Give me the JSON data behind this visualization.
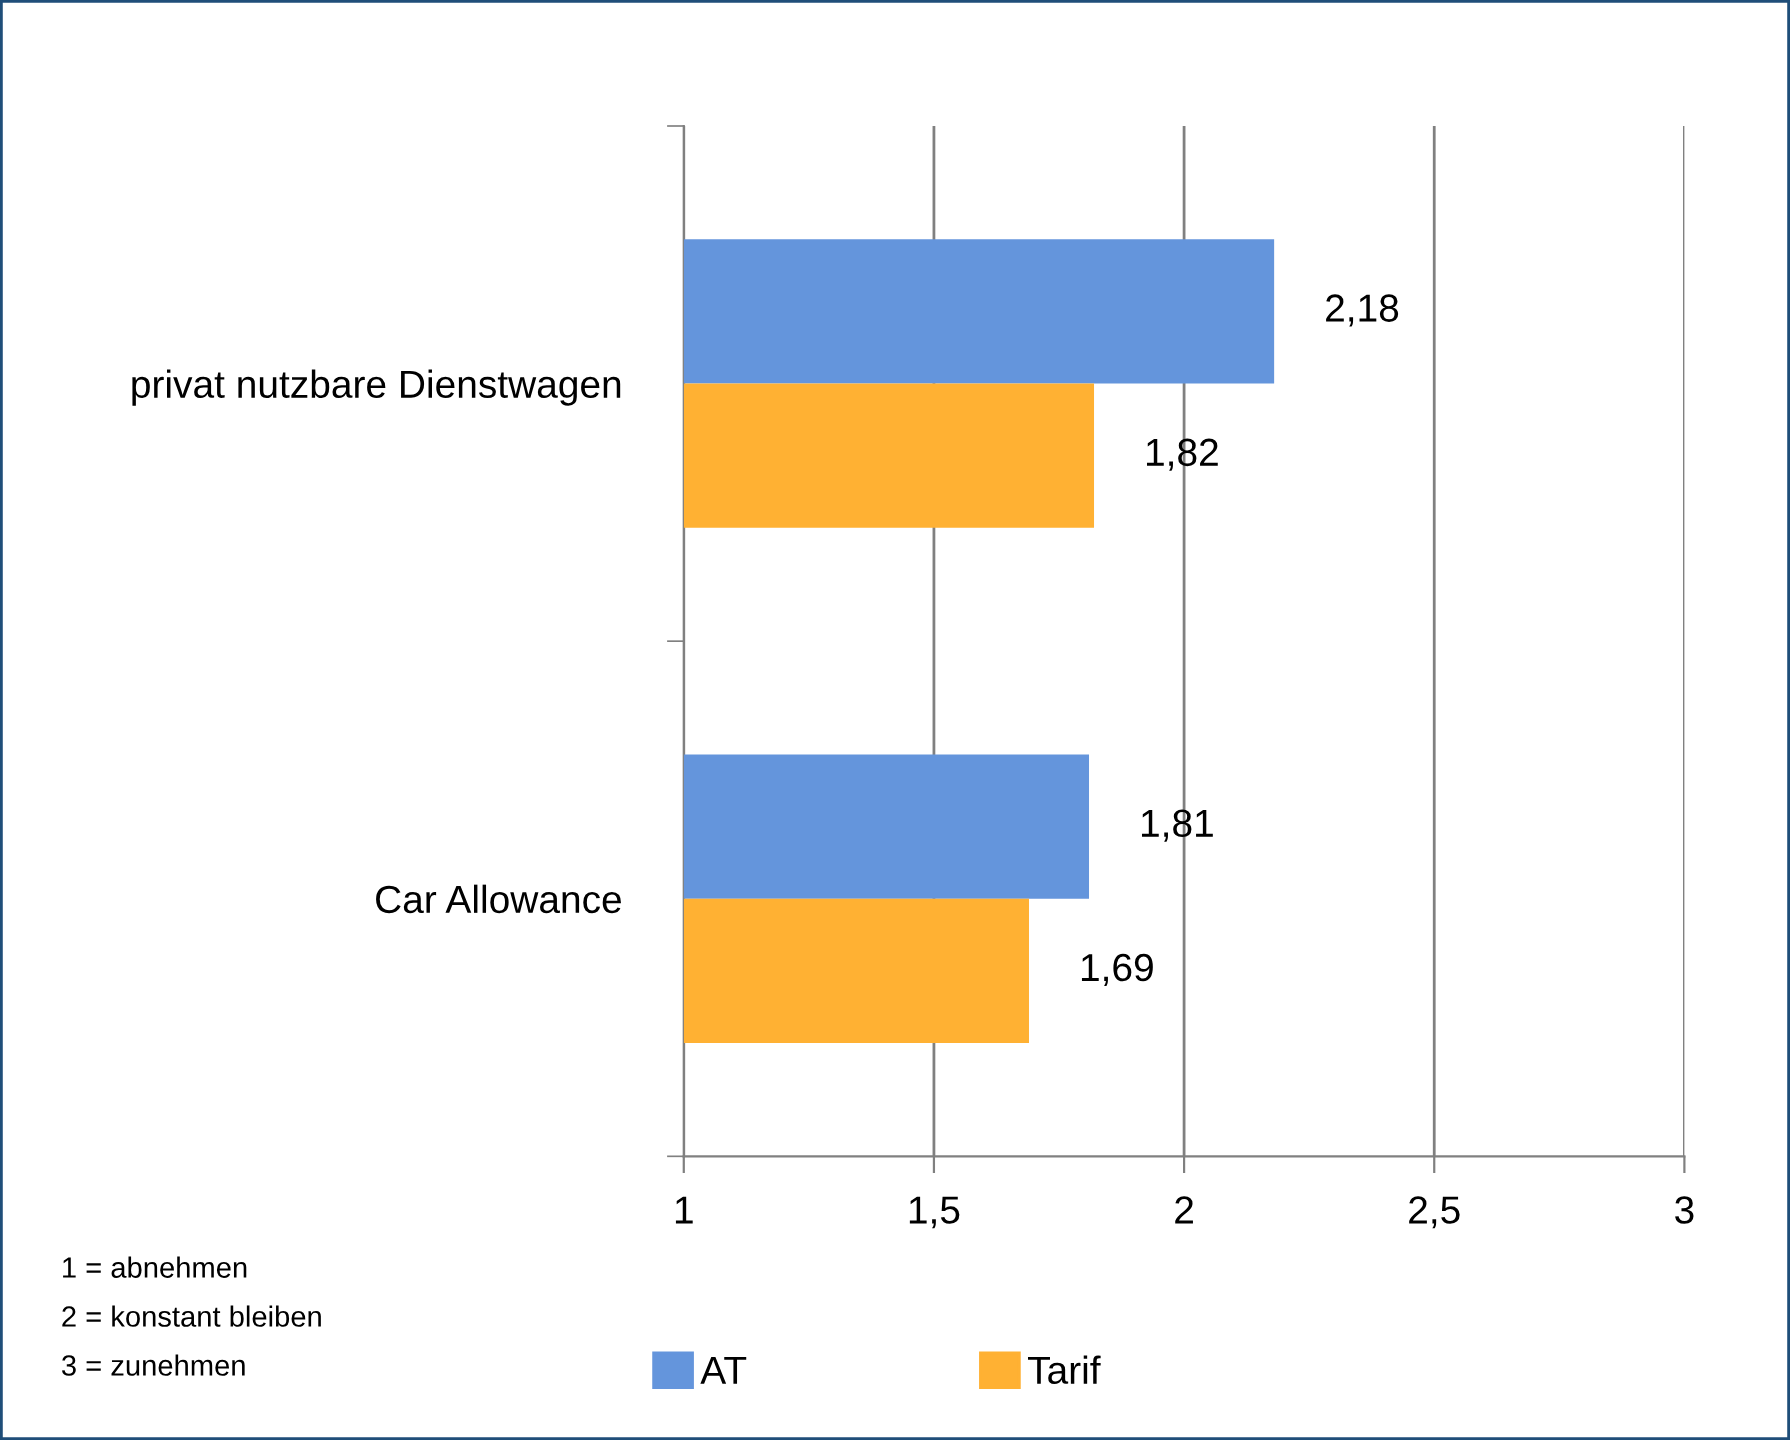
{
  "chart_data": {
    "type": "bar",
    "orientation": "horizontal",
    "categories": [
      "privat nutzbare Dienstwagen",
      "Car Allowance"
    ],
    "series": [
      {
        "name": "AT",
        "color": "#6495dc",
        "values": [
          2.18,
          1.81
        ],
        "value_labels": [
          "2,18",
          "1,81"
        ]
      },
      {
        "name": "Tarif",
        "color": "#ffb133",
        "values": [
          1.82,
          1.69
        ],
        "value_labels": [
          "1,82",
          "1,69"
        ]
      }
    ],
    "xlim": [
      1,
      3
    ],
    "xticks": [
      1,
      {
        "value": 1.5,
        "label": "1,5"
      },
      2,
      {
        "value": 2.5,
        "label": "2,5"
      },
      3
    ],
    "grid": "x",
    "legend": "bottom",
    "annotations": [
      "1 = abnehmen",
      "2 = konstant bleiben",
      "3 = zunehmen"
    ]
  }
}
